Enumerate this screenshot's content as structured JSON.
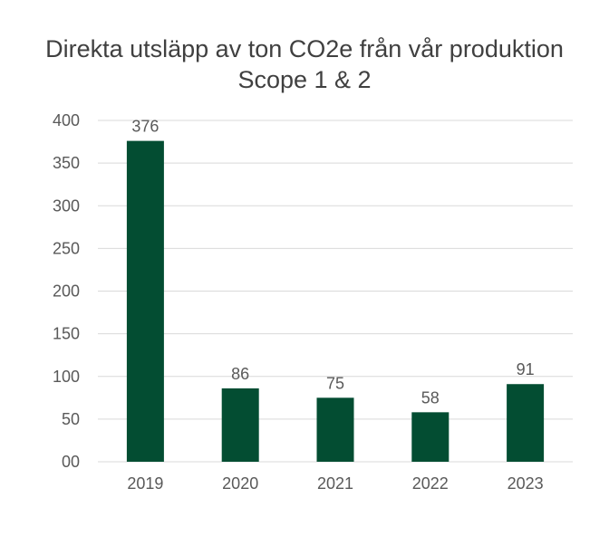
{
  "chart_data": {
    "type": "bar",
    "title": "Direkta utsläpp av ton CO2e från vår produktion",
    "subtitle": "Scope 1 & 2",
    "categories": [
      "2019",
      "2020",
      "2021",
      "2022",
      "2023"
    ],
    "values": [
      376,
      86,
      75,
      58,
      91
    ],
    "data_labels": [
      "376",
      "86",
      "75",
      "58",
      "91"
    ],
    "y_ticks": [
      "00",
      "50",
      "100",
      "150",
      "200",
      "250",
      "300",
      "350",
      "400"
    ],
    "y_tick_values": [
      0,
      50,
      100,
      150,
      200,
      250,
      300,
      350,
      400
    ],
    "ylim": [
      0,
      400
    ],
    "xlabel": "",
    "ylabel": "",
    "grid": true,
    "bar_color": "#034d32",
    "grid_color": "#d9d9d9",
    "text_color": "#595959",
    "title_color": "#404040"
  }
}
